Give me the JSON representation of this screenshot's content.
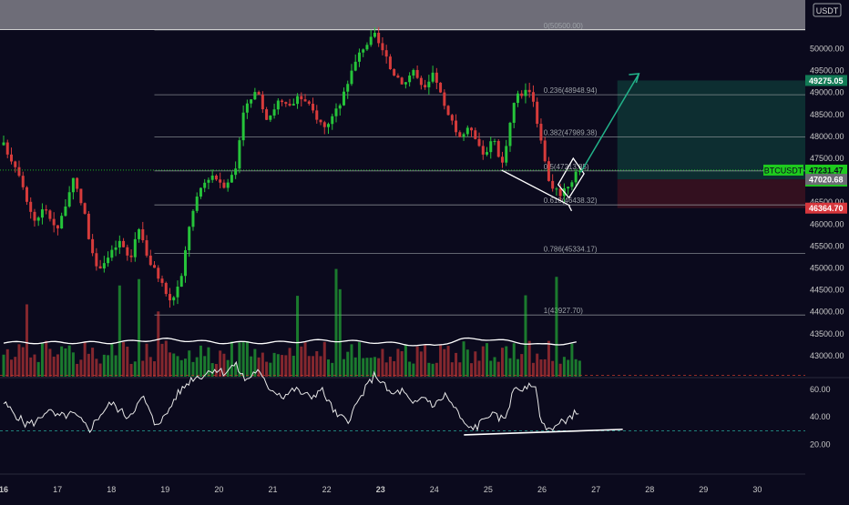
{
  "symbol": "BTCUSDT",
  "currency": "USDT",
  "countdown": "03:42",
  "colors": {
    "background": "#0b0a1d",
    "up": "#26c43a",
    "down": "#d63b3b",
    "fib": "#9ea3a8",
    "last_price_tag": "#1eca1e",
    "target_zone": "#0f3b38",
    "stop_zone": "#3b1220",
    "target_tag": "#127a55",
    "stop_tag": "#d6363c",
    "rsi_line": "#e9e9e9",
    "arrow": "#22b38a"
  },
  "price_axis": {
    "ticks": [
      "50000.00",
      "49500.00",
      "49000.00",
      "48500.00",
      "48000.00",
      "47500.00",
      "47000.00",
      "46500.00",
      "46000.00",
      "45500.00",
      "45000.00",
      "44500.00",
      "44000.00",
      "43500.00",
      "43000.00"
    ],
    "tick_values": [
      50000,
      49500,
      49000,
      48500,
      48000,
      47500,
      47000,
      46500,
      46000,
      45500,
      45000,
      44500,
      44000,
      43500,
      43000
    ]
  },
  "rsi_axis": {
    "ticks": [
      "60.00",
      "40.00",
      "20.00"
    ],
    "tick_values": [
      60,
      40,
      20
    ]
  },
  "time_axis": {
    "labels": [
      "16",
      "17",
      "18",
      "19",
      "20",
      "21",
      "22",
      "23",
      "24",
      "25",
      "26",
      "27",
      "28",
      "29",
      "30"
    ],
    "bold": [
      "16",
      "23"
    ]
  },
  "price_tags": {
    "target": "49275.05",
    "last": "47231.47",
    "entry": "47020.68",
    "stop": "46364.70"
  },
  "fib_levels": [
    {
      "ratio": "0",
      "price": 50500.0,
      "label": "0(50500.00)"
    },
    {
      "ratio": "0.236",
      "price": 48948.94,
      "label": "0.236(48948.94)"
    },
    {
      "ratio": "0.382",
      "price": 47989.38,
      "label": "0.382(47989.38)"
    },
    {
      "ratio": "0.5",
      "price": 47213.85,
      "label": "0.5(47213.85)"
    },
    {
      "ratio": "0.618",
      "price": 46438.32,
      "label": "0.618(46438.32)"
    },
    {
      "ratio": "0.786",
      "price": 45334.17,
      "label": "0.786(45334.17)"
    },
    {
      "ratio": "1",
      "price": 43927.7,
      "label": "1(43927.70)"
    }
  ],
  "chart_data": {
    "type": "candlestick",
    "title": "",
    "series_name": "BTCUSDT",
    "ylim": [
      42600,
      50400
    ],
    "x_range": [
      "16",
      "30"
    ],
    "grid": false,
    "price_path": [
      [
        16.0,
        47800
      ],
      [
        16.3,
        47150
      ],
      [
        16.55,
        46050
      ],
      [
        16.75,
        46350
      ],
      [
        17.0,
        45900
      ],
      [
        17.3,
        47000
      ],
      [
        17.5,
        46250
      ],
      [
        17.7,
        44950
      ],
      [
        17.95,
        45250
      ],
      [
        18.15,
        45600
      ],
      [
        18.35,
        45150
      ],
      [
        18.5,
        46000
      ],
      [
        18.7,
        45150
      ],
      [
        18.9,
        44750
      ],
      [
        19.1,
        44200
      ],
      [
        19.3,
        44750
      ],
      [
        19.45,
        46000
      ],
      [
        19.65,
        46800
      ],
      [
        19.85,
        47150
      ],
      [
        20.1,
        46900
      ],
      [
        20.3,
        47200
      ],
      [
        20.45,
        48600
      ],
      [
        20.7,
        49000
      ],
      [
        20.9,
        48400
      ],
      [
        21.1,
        48800
      ],
      [
        21.3,
        48650
      ],
      [
        21.5,
        48900
      ],
      [
        21.7,
        48650
      ],
      [
        21.95,
        48200
      ],
      [
        22.2,
        48600
      ],
      [
        22.4,
        49300
      ],
      [
        22.65,
        50000
      ],
      [
        22.9,
        50300
      ],
      [
        23.2,
        49500
      ],
      [
        23.45,
        49200
      ],
      [
        23.6,
        49550
      ],
      [
        23.8,
        49000
      ],
      [
        24.0,
        49450
      ],
      [
        24.2,
        48600
      ],
      [
        24.45,
        48000
      ],
      [
        24.7,
        48200
      ],
      [
        24.9,
        47600
      ],
      [
        25.1,
        47900
      ],
      [
        25.25,
        47300
      ],
      [
        25.5,
        48900
      ],
      [
        25.8,
        49100
      ],
      [
        26.0,
        47700
      ],
      [
        26.15,
        46900
      ],
      [
        26.35,
        46700
      ],
      [
        26.55,
        47000
      ],
      [
        26.7,
        47231
      ]
    ],
    "volume_path": [
      [
        16,
        0.3
      ],
      [
        18,
        0.3
      ],
      [
        19,
        0.33
      ],
      [
        20,
        0.3
      ],
      [
        21,
        0.3
      ],
      [
        22,
        0.32
      ],
      [
        23,
        0.3
      ],
      [
        24,
        0.27
      ],
      [
        24.5,
        0.33
      ],
      [
        25,
        0.33
      ],
      [
        26,
        0.28
      ],
      [
        26.7,
        0.3
      ]
    ],
    "rsi_path": [
      [
        16.0,
        50
      ],
      [
        16.4,
        35
      ],
      [
        16.6,
        36
      ],
      [
        16.8,
        45
      ],
      [
        17.0,
        40
      ],
      [
        17.3,
        42
      ],
      [
        17.6,
        31
      ],
      [
        17.8,
        42
      ],
      [
        18.0,
        50
      ],
      [
        18.3,
        40
      ],
      [
        18.6,
        54
      ],
      [
        18.8,
        35
      ],
      [
        19.0,
        40
      ],
      [
        19.2,
        55
      ],
      [
        19.5,
        68
      ],
      [
        19.7,
        70
      ],
      [
        19.9,
        75
      ],
      [
        20.1,
        72
      ],
      [
        20.3,
        78
      ],
      [
        20.5,
        66
      ],
      [
        20.7,
        74
      ],
      [
        20.9,
        62
      ],
      [
        21.2,
        55
      ],
      [
        21.4,
        60
      ],
      [
        21.7,
        54
      ],
      [
        21.9,
        60
      ],
      [
        22.2,
        40
      ],
      [
        22.4,
        38
      ],
      [
        22.7,
        59
      ],
      [
        22.9,
        71
      ],
      [
        23.2,
        56
      ],
      [
        23.4,
        59
      ],
      [
        23.6,
        48
      ],
      [
        23.8,
        55
      ],
      [
        24.0,
        48
      ],
      [
        24.2,
        56
      ],
      [
        24.4,
        45
      ],
      [
        24.6,
        32
      ],
      [
        24.8,
        33
      ],
      [
        25.0,
        42
      ],
      [
        25.3,
        38
      ],
      [
        25.5,
        62
      ],
      [
        25.7,
        59
      ],
      [
        25.85,
        65
      ],
      [
        26.0,
        35
      ],
      [
        26.2,
        31
      ],
      [
        26.4,
        37
      ],
      [
        26.7,
        45
      ]
    ],
    "rsi_bands": [
      70,
      30
    ],
    "trendline_rsi": {
      "from": [
        24.55,
        27.0
      ],
      "to": [
        27.5,
        31.0
      ]
    },
    "diamond": {
      "top": [
        26.58,
        47500
      ],
      "right": [
        26.78,
        47150
      ],
      "bottom": [
        26.5,
        46600
      ],
      "left": [
        26.3,
        46900
      ]
    },
    "wedge_lines": [
      {
        "from": [
          25.25,
          47230
        ],
        "to": [
          26.52,
          46420
        ]
      }
    ],
    "arrow": {
      "from": [
        26.72,
        47180
      ],
      "to": [
        27.8,
        49430
      ]
    },
    "target_zone": {
      "x_from": 27.4,
      "x_to": 29.0,
      "y_from": 47020.68,
      "y_to": 49275.05
    },
    "stop_zone": {
      "x_from": 27.4,
      "x_to": 29.0,
      "y_from": 46364.7,
      "y_to": 47020.68
    }
  }
}
